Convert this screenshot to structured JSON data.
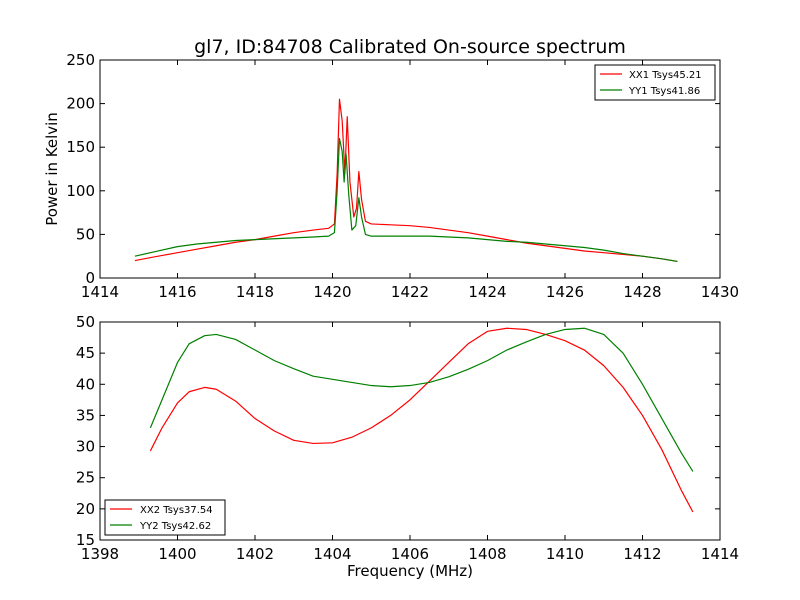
{
  "figure": {
    "title": "gl7, ID:84708 Calibrated On-source spectrum",
    "xlabel": "Frequency (MHz)"
  },
  "colors": {
    "xx": "#ff0000",
    "yy": "#008000"
  },
  "chart_data": [
    {
      "type": "line",
      "title": "gl7, ID:84708 Calibrated On-source spectrum",
      "xlabel": "",
      "ylabel": "Power in Kelvin",
      "xlim": [
        1414,
        1430
      ],
      "ylim": [
        0,
        250
      ],
      "xticks": [
        "1414",
        "1416",
        "1418",
        "1420",
        "1422",
        "1424",
        "1426",
        "1428",
        "1430"
      ],
      "yticks": [
        "0",
        "50",
        "100",
        "150",
        "200",
        "250"
      ],
      "grid": false,
      "legend": "top-right",
      "series": [
        {
          "name": "XX1 Tsys45.21",
          "color": "#ff0000",
          "x": [
            1414.9,
            1415.5,
            1416.0,
            1416.5,
            1417.0,
            1417.5,
            1418.0,
            1418.5,
            1419.0,
            1419.5,
            1419.9,
            1420.05,
            1420.12,
            1420.18,
            1420.25,
            1420.32,
            1420.38,
            1420.45,
            1420.55,
            1420.62,
            1420.68,
            1420.75,
            1420.85,
            1421.0,
            1421.5,
            1422.0,
            1422.5,
            1423.0,
            1423.5,
            1424.0,
            1424.5,
            1425.0,
            1425.5,
            1426.0,
            1426.5,
            1427.0,
            1427.5,
            1428.0,
            1428.5,
            1428.9
          ],
          "values": [
            20,
            25,
            29,
            33,
            37,
            41,
            44,
            48,
            52,
            55,
            57,
            62,
            120,
            205,
            180,
            120,
            185,
            110,
            70,
            80,
            122,
            90,
            65,
            62,
            61,
            60,
            58,
            55,
            52,
            48,
            44,
            40,
            37,
            34,
            31,
            29,
            27,
            25,
            22,
            19
          ]
        },
        {
          "name": "YY1 Tsys41.86",
          "color": "#008000",
          "x": [
            1414.9,
            1415.5,
            1416.0,
            1416.5,
            1417.0,
            1417.5,
            1418.0,
            1418.5,
            1419.0,
            1419.5,
            1419.9,
            1420.05,
            1420.12,
            1420.18,
            1420.25,
            1420.3,
            1420.35,
            1420.42,
            1420.5,
            1420.6,
            1420.68,
            1420.75,
            1420.85,
            1421.0,
            1421.5,
            1422.0,
            1422.5,
            1423.0,
            1423.5,
            1424.0,
            1424.5,
            1425.0,
            1425.5,
            1426.0,
            1426.5,
            1427.0,
            1427.5,
            1428.0,
            1428.5,
            1428.9
          ],
          "values": [
            25,
            31,
            36,
            39,
            41,
            43,
            44,
            45,
            46,
            47,
            48,
            52,
            100,
            160,
            145,
            110,
            142,
            95,
            55,
            60,
            92,
            70,
            50,
            48,
            48,
            48,
            48,
            47,
            46,
            44,
            42,
            41,
            39,
            37,
            35,
            32,
            28,
            25,
            22,
            19
          ]
        }
      ]
    },
    {
      "type": "line",
      "title": "",
      "xlabel": "Frequency (MHz)",
      "ylabel": "",
      "xlim": [
        1398,
        1414
      ],
      "ylim": [
        15,
        50
      ],
      "xticks": [
        "1398",
        "1400",
        "1402",
        "1404",
        "1406",
        "1408",
        "1410",
        "1412",
        "1414"
      ],
      "yticks": [
        "15",
        "20",
        "25",
        "30",
        "35",
        "40",
        "45",
        "50"
      ],
      "grid": false,
      "legend": "bottom-left",
      "series": [
        {
          "name": "XX2 Tsys37.54",
          "color": "#ff0000",
          "x": [
            1399.3,
            1399.6,
            1400.0,
            1400.3,
            1400.7,
            1401.0,
            1401.5,
            1402.0,
            1402.5,
            1403.0,
            1403.5,
            1404.0,
            1404.5,
            1405.0,
            1405.5,
            1406.0,
            1406.5,
            1407.0,
            1407.5,
            1408.0,
            1408.5,
            1409.0,
            1409.5,
            1410.0,
            1410.5,
            1411.0,
            1411.5,
            1412.0,
            1412.5,
            1413.0,
            1413.3
          ],
          "values": [
            29.3,
            33,
            37,
            38.8,
            39.5,
            39.2,
            37.3,
            34.5,
            32.5,
            31.0,
            30.5,
            30.6,
            31.5,
            33.0,
            35.0,
            37.5,
            40.5,
            43.5,
            46.5,
            48.5,
            49.0,
            48.8,
            48.0,
            47.0,
            45.5,
            43.0,
            39.5,
            35.0,
            29.5,
            23.0,
            19.5
          ]
        },
        {
          "name": "YY2 Tsys42.62",
          "color": "#008000",
          "x": [
            1399.3,
            1399.6,
            1400.0,
            1400.3,
            1400.7,
            1401.0,
            1401.5,
            1402.0,
            1402.5,
            1403.0,
            1403.5,
            1404.0,
            1404.5,
            1405.0,
            1405.5,
            1406.0,
            1406.5,
            1407.0,
            1407.5,
            1408.0,
            1408.5,
            1409.0,
            1409.5,
            1410.0,
            1410.5,
            1411.0,
            1411.5,
            1412.0,
            1412.5,
            1413.0,
            1413.3
          ],
          "values": [
            33.0,
            37.5,
            43.5,
            46.5,
            47.8,
            48.0,
            47.2,
            45.5,
            43.8,
            42.5,
            41.3,
            40.8,
            40.3,
            39.8,
            39.6,
            39.8,
            40.3,
            41.2,
            42.4,
            43.8,
            45.5,
            46.8,
            48.0,
            48.8,
            49.0,
            48.0,
            45.0,
            40.0,
            34.5,
            29.0,
            26.0
          ]
        }
      ]
    }
  ]
}
